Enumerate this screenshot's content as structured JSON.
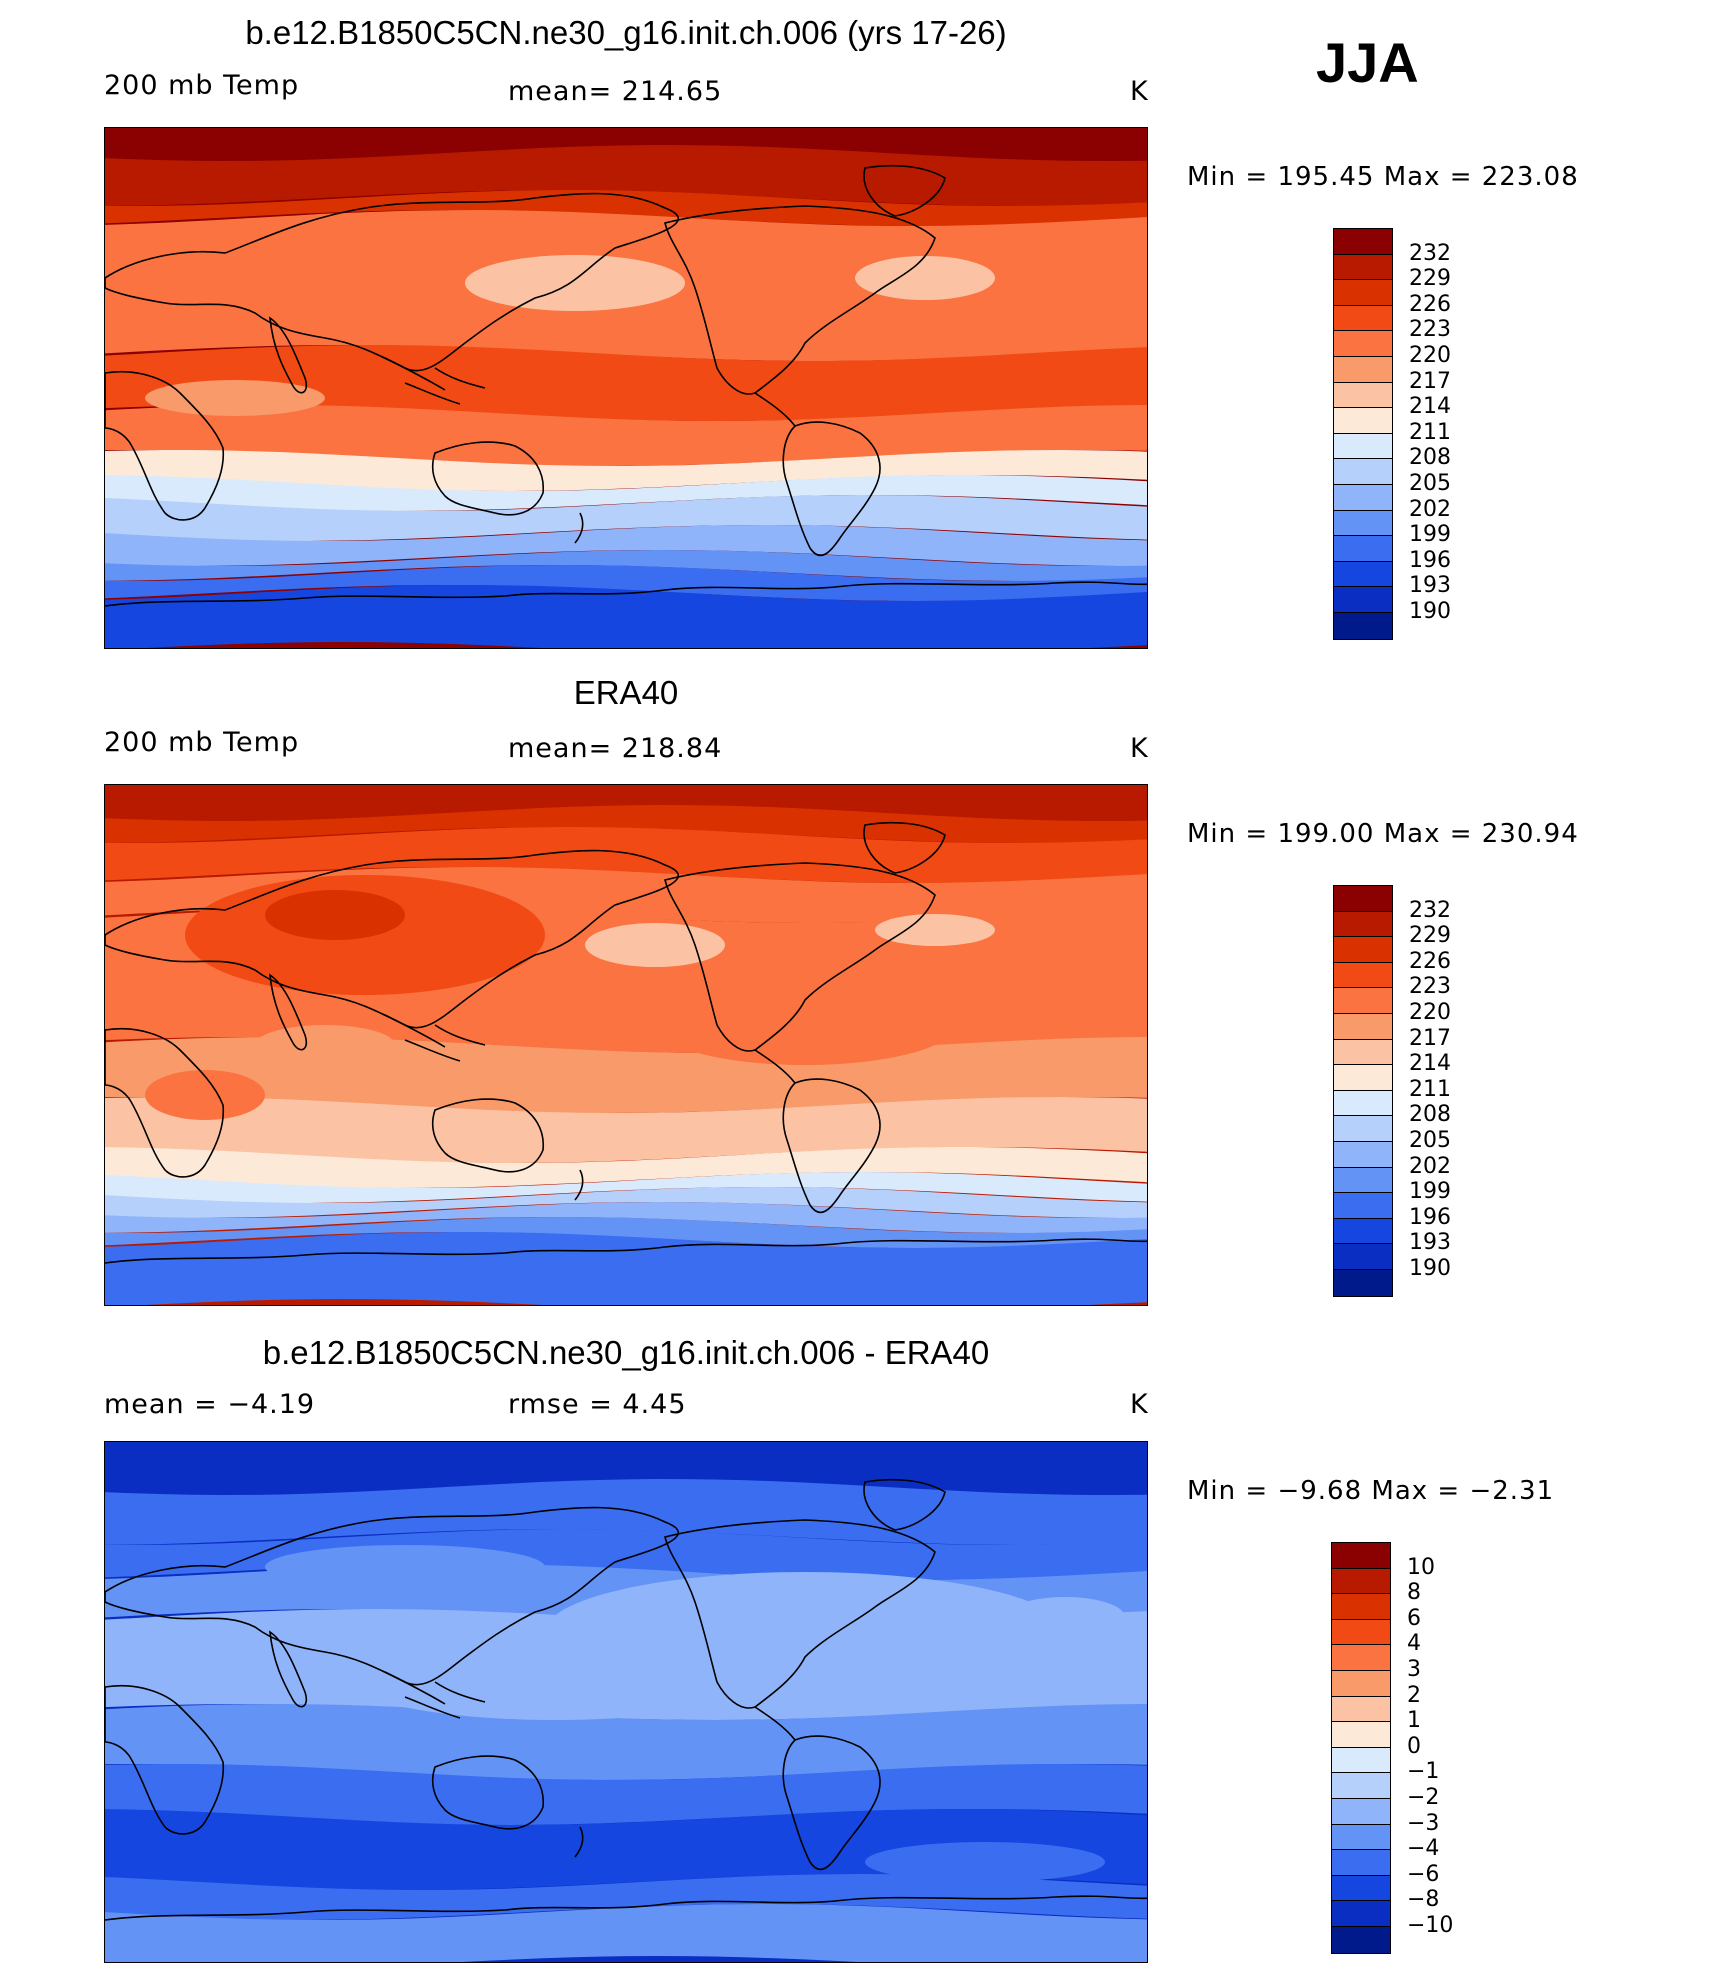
{
  "season": "JJA",
  "panels": [
    {
      "title": "b.e12.B1850C5CN.ne30_g16.init.ch.006 (yrs 17-26)",
      "left_label": "200 mb Temp",
      "center_label": "mean=  214.65",
      "units": "K",
      "min_text": "Min  =  195.45",
      "max_text": "Max  =  223.08",
      "palette": "abs",
      "variant": "model"
    },
    {
      "title": "ERA40",
      "left_label": "200 mb Temp",
      "center_label": "mean=  218.84",
      "units": "K",
      "min_text": "Min  =  199.00",
      "max_text": "Max  =  230.94",
      "palette": "abs",
      "variant": "obs"
    },
    {
      "title": "b.e12.B1850C5CN.ne30_g16.init.ch.006 - ERA40",
      "left_label": "mean  =    −4.19",
      "center_label": "rmse  =     4.45",
      "units": "K",
      "min_text": "Min  =    −9.68",
      "max_text": "Max  =    −2.31",
      "palette": "diff",
      "variant": "diff"
    }
  ],
  "colorbars": {
    "abs": {
      "labels": [
        "232",
        "229",
        "226",
        "223",
        "220",
        "217",
        "214",
        "211",
        "208",
        "205",
        "202",
        "199",
        "196",
        "193",
        "190"
      ],
      "colors": [
        "#8b0000",
        "#b81a00",
        "#d93200",
        "#f24a14",
        "#fa7340",
        "#f99a6a",
        "#fbc3a4",
        "#fde9d8",
        "#d9eafc",
        "#b4d0fb",
        "#8fb4fa",
        "#6493f6",
        "#3a6df0",
        "#1547e0",
        "#0a2ec2",
        "#001a8c"
      ]
    },
    "diff": {
      "labels": [
        "10",
        "8",
        "6",
        "4",
        "3",
        "2",
        "1",
        "0",
        "−1",
        "−2",
        "−3",
        "−4",
        "−6",
        "−8",
        "−10"
      ],
      "colors": [
        "#8b0000",
        "#b81a00",
        "#d93200",
        "#f24a14",
        "#fa7340",
        "#f99a6a",
        "#fbc3a4",
        "#fde9d8",
        "#d9eafc",
        "#b4d0fb",
        "#8fb4fa",
        "#6493f6",
        "#3a6df0",
        "#1547e0",
        "#0a2ec2",
        "#001a8c"
      ]
    }
  }
}
